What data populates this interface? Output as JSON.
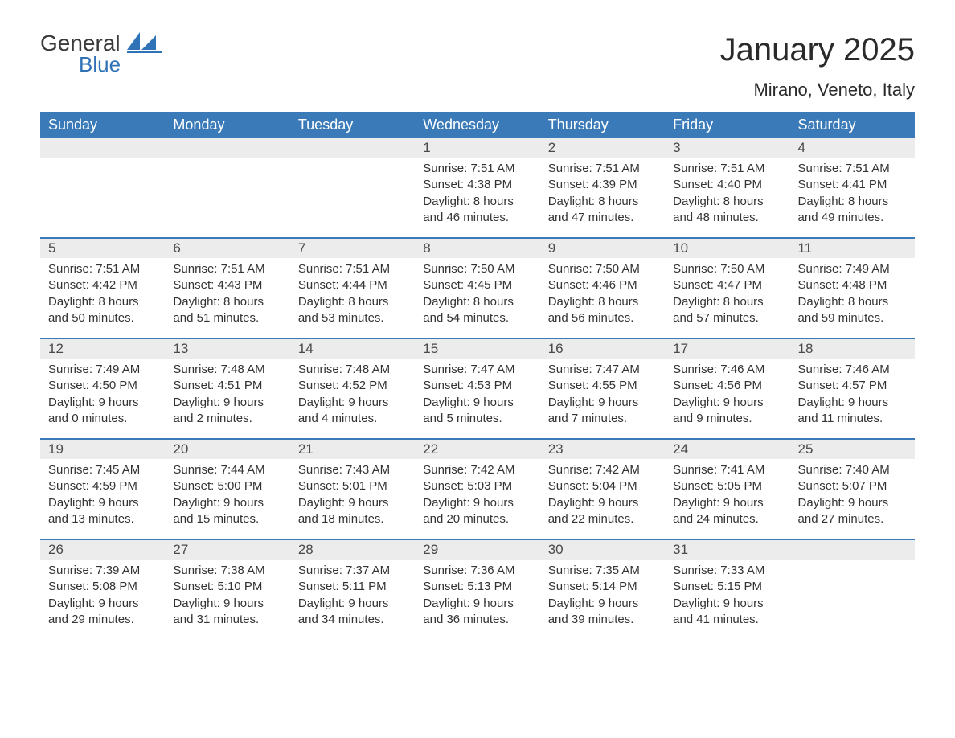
{
  "brand": {
    "logo_text_gray": "General",
    "logo_text_blue": "Blue",
    "logo_color_gray": "#3a3a3a",
    "logo_color_blue": "#2f72b6"
  },
  "title": "January 2025",
  "subtitle": "Mirano, Veneto, Italy",
  "colors": {
    "header_bg": "#3a7ab8",
    "header_text": "#ffffff",
    "daynum_bg": "#ececec",
    "daynum_text": "#4a4a4a",
    "body_text": "#333333",
    "rule": "#3a7ab8",
    "page_bg": "#ffffff"
  },
  "typography": {
    "title_fontsize": 40,
    "subtitle_fontsize": 22,
    "dayheader_fontsize": 18,
    "daynum_fontsize": 17,
    "body_fontsize": 15,
    "font_family": "Arial"
  },
  "day_headers": [
    "Sunday",
    "Monday",
    "Tuesday",
    "Wednesday",
    "Thursday",
    "Friday",
    "Saturday"
  ],
  "weeks": [
    [
      {
        "num": "",
        "sunrise": "",
        "sunset": "",
        "daylight1": "",
        "daylight2": ""
      },
      {
        "num": "",
        "sunrise": "",
        "sunset": "",
        "daylight1": "",
        "daylight2": ""
      },
      {
        "num": "",
        "sunrise": "",
        "sunset": "",
        "daylight1": "",
        "daylight2": ""
      },
      {
        "num": "1",
        "sunrise": "Sunrise: 7:51 AM",
        "sunset": "Sunset: 4:38 PM",
        "daylight1": "Daylight: 8 hours",
        "daylight2": "and 46 minutes."
      },
      {
        "num": "2",
        "sunrise": "Sunrise: 7:51 AM",
        "sunset": "Sunset: 4:39 PM",
        "daylight1": "Daylight: 8 hours",
        "daylight2": "and 47 minutes."
      },
      {
        "num": "3",
        "sunrise": "Sunrise: 7:51 AM",
        "sunset": "Sunset: 4:40 PM",
        "daylight1": "Daylight: 8 hours",
        "daylight2": "and 48 minutes."
      },
      {
        "num": "4",
        "sunrise": "Sunrise: 7:51 AM",
        "sunset": "Sunset: 4:41 PM",
        "daylight1": "Daylight: 8 hours",
        "daylight2": "and 49 minutes."
      }
    ],
    [
      {
        "num": "5",
        "sunrise": "Sunrise: 7:51 AM",
        "sunset": "Sunset: 4:42 PM",
        "daylight1": "Daylight: 8 hours",
        "daylight2": "and 50 minutes."
      },
      {
        "num": "6",
        "sunrise": "Sunrise: 7:51 AM",
        "sunset": "Sunset: 4:43 PM",
        "daylight1": "Daylight: 8 hours",
        "daylight2": "and 51 minutes."
      },
      {
        "num": "7",
        "sunrise": "Sunrise: 7:51 AM",
        "sunset": "Sunset: 4:44 PM",
        "daylight1": "Daylight: 8 hours",
        "daylight2": "and 53 minutes."
      },
      {
        "num": "8",
        "sunrise": "Sunrise: 7:50 AM",
        "sunset": "Sunset: 4:45 PM",
        "daylight1": "Daylight: 8 hours",
        "daylight2": "and 54 minutes."
      },
      {
        "num": "9",
        "sunrise": "Sunrise: 7:50 AM",
        "sunset": "Sunset: 4:46 PM",
        "daylight1": "Daylight: 8 hours",
        "daylight2": "and 56 minutes."
      },
      {
        "num": "10",
        "sunrise": "Sunrise: 7:50 AM",
        "sunset": "Sunset: 4:47 PM",
        "daylight1": "Daylight: 8 hours",
        "daylight2": "and 57 minutes."
      },
      {
        "num": "11",
        "sunrise": "Sunrise: 7:49 AM",
        "sunset": "Sunset: 4:48 PM",
        "daylight1": "Daylight: 8 hours",
        "daylight2": "and 59 minutes."
      }
    ],
    [
      {
        "num": "12",
        "sunrise": "Sunrise: 7:49 AM",
        "sunset": "Sunset: 4:50 PM",
        "daylight1": "Daylight: 9 hours",
        "daylight2": "and 0 minutes."
      },
      {
        "num": "13",
        "sunrise": "Sunrise: 7:48 AM",
        "sunset": "Sunset: 4:51 PM",
        "daylight1": "Daylight: 9 hours",
        "daylight2": "and 2 minutes."
      },
      {
        "num": "14",
        "sunrise": "Sunrise: 7:48 AM",
        "sunset": "Sunset: 4:52 PM",
        "daylight1": "Daylight: 9 hours",
        "daylight2": "and 4 minutes."
      },
      {
        "num": "15",
        "sunrise": "Sunrise: 7:47 AM",
        "sunset": "Sunset: 4:53 PM",
        "daylight1": "Daylight: 9 hours",
        "daylight2": "and 5 minutes."
      },
      {
        "num": "16",
        "sunrise": "Sunrise: 7:47 AM",
        "sunset": "Sunset: 4:55 PM",
        "daylight1": "Daylight: 9 hours",
        "daylight2": "and 7 minutes."
      },
      {
        "num": "17",
        "sunrise": "Sunrise: 7:46 AM",
        "sunset": "Sunset: 4:56 PM",
        "daylight1": "Daylight: 9 hours",
        "daylight2": "and 9 minutes."
      },
      {
        "num": "18",
        "sunrise": "Sunrise: 7:46 AM",
        "sunset": "Sunset: 4:57 PM",
        "daylight1": "Daylight: 9 hours",
        "daylight2": "and 11 minutes."
      }
    ],
    [
      {
        "num": "19",
        "sunrise": "Sunrise: 7:45 AM",
        "sunset": "Sunset: 4:59 PM",
        "daylight1": "Daylight: 9 hours",
        "daylight2": "and 13 minutes."
      },
      {
        "num": "20",
        "sunrise": "Sunrise: 7:44 AM",
        "sunset": "Sunset: 5:00 PM",
        "daylight1": "Daylight: 9 hours",
        "daylight2": "and 15 minutes."
      },
      {
        "num": "21",
        "sunrise": "Sunrise: 7:43 AM",
        "sunset": "Sunset: 5:01 PM",
        "daylight1": "Daylight: 9 hours",
        "daylight2": "and 18 minutes."
      },
      {
        "num": "22",
        "sunrise": "Sunrise: 7:42 AM",
        "sunset": "Sunset: 5:03 PM",
        "daylight1": "Daylight: 9 hours",
        "daylight2": "and 20 minutes."
      },
      {
        "num": "23",
        "sunrise": "Sunrise: 7:42 AM",
        "sunset": "Sunset: 5:04 PM",
        "daylight1": "Daylight: 9 hours",
        "daylight2": "and 22 minutes."
      },
      {
        "num": "24",
        "sunrise": "Sunrise: 7:41 AM",
        "sunset": "Sunset: 5:05 PM",
        "daylight1": "Daylight: 9 hours",
        "daylight2": "and 24 minutes."
      },
      {
        "num": "25",
        "sunrise": "Sunrise: 7:40 AM",
        "sunset": "Sunset: 5:07 PM",
        "daylight1": "Daylight: 9 hours",
        "daylight2": "and 27 minutes."
      }
    ],
    [
      {
        "num": "26",
        "sunrise": "Sunrise: 7:39 AM",
        "sunset": "Sunset: 5:08 PM",
        "daylight1": "Daylight: 9 hours",
        "daylight2": "and 29 minutes."
      },
      {
        "num": "27",
        "sunrise": "Sunrise: 7:38 AM",
        "sunset": "Sunset: 5:10 PM",
        "daylight1": "Daylight: 9 hours",
        "daylight2": "and 31 minutes."
      },
      {
        "num": "28",
        "sunrise": "Sunrise: 7:37 AM",
        "sunset": "Sunset: 5:11 PM",
        "daylight1": "Daylight: 9 hours",
        "daylight2": "and 34 minutes."
      },
      {
        "num": "29",
        "sunrise": "Sunrise: 7:36 AM",
        "sunset": "Sunset: 5:13 PM",
        "daylight1": "Daylight: 9 hours",
        "daylight2": "and 36 minutes."
      },
      {
        "num": "30",
        "sunrise": "Sunrise: 7:35 AM",
        "sunset": "Sunset: 5:14 PM",
        "daylight1": "Daylight: 9 hours",
        "daylight2": "and 39 minutes."
      },
      {
        "num": "31",
        "sunrise": "Sunrise: 7:33 AM",
        "sunset": "Sunset: 5:15 PM",
        "daylight1": "Daylight: 9 hours",
        "daylight2": "and 41 minutes."
      },
      {
        "num": "",
        "sunrise": "",
        "sunset": "",
        "daylight1": "",
        "daylight2": ""
      }
    ]
  ]
}
